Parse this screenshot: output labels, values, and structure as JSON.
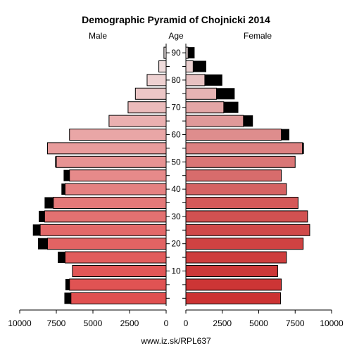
{
  "chart_data": {
    "type": "bar",
    "title": "Demographic Pyramid of Chojnicki 2014",
    "left_label": "Male",
    "center_label": "Age",
    "right_label": "Female",
    "source": "www.iz.sk/RPL637",
    "age_ticks": [
      "10",
      "20",
      "30",
      "40",
      "50",
      "60",
      "70",
      "80",
      "90"
    ],
    "x_ticks_left": [
      "10000",
      "7500",
      "5000",
      "2500",
      "0"
    ],
    "x_ticks_right": [
      "0",
      "2500",
      "5000",
      "7500",
      "10000"
    ],
    "xlim": [
      0,
      10000
    ],
    "age_groups": [
      "0-4",
      "5-9",
      "10-14",
      "15-19",
      "20-24",
      "25-29",
      "30-34",
      "35-39",
      "40-44",
      "45-49",
      "50-54",
      "55-59",
      "60-64",
      "65-69",
      "70-74",
      "75-79",
      "80-84",
      "85-89",
      "90+"
    ],
    "series": [
      {
        "name": "Male",
        "values": [
          6500,
          6600,
          6400,
          6900,
          8100,
          8600,
          8300,
          7700,
          6900,
          6600,
          7500,
          8100,
          6600,
          3900,
          2600,
          2100,
          1300,
          500,
          150
        ]
      },
      {
        "name": "Male excess",
        "values": [
          450,
          280,
          0,
          500,
          650,
          500,
          400,
          600,
          250,
          400,
          80,
          0,
          0,
          0,
          0,
          0,
          0,
          0,
          0
        ]
      },
      {
        "name": "Female",
        "values": [
          6500,
          6550,
          6300,
          6900,
          8050,
          8500,
          8350,
          7700,
          6900,
          6550,
          7500,
          8000,
          6550,
          3950,
          2600,
          2100,
          1300,
          500,
          150
        ]
      },
      {
        "name": "Female excess",
        "values": [
          0,
          0,
          0,
          0,
          0,
          0,
          0,
          0,
          0,
          0,
          0,
          100,
          550,
          650,
          1000,
          1250,
          1200,
          900,
          450
        ]
      }
    ],
    "colors": {
      "excess": "#000000",
      "outline": "#000000",
      "dark_end": "#e05050",
      "light_end": "#f0e8e8",
      "female_dark": "#cc3333"
    }
  }
}
